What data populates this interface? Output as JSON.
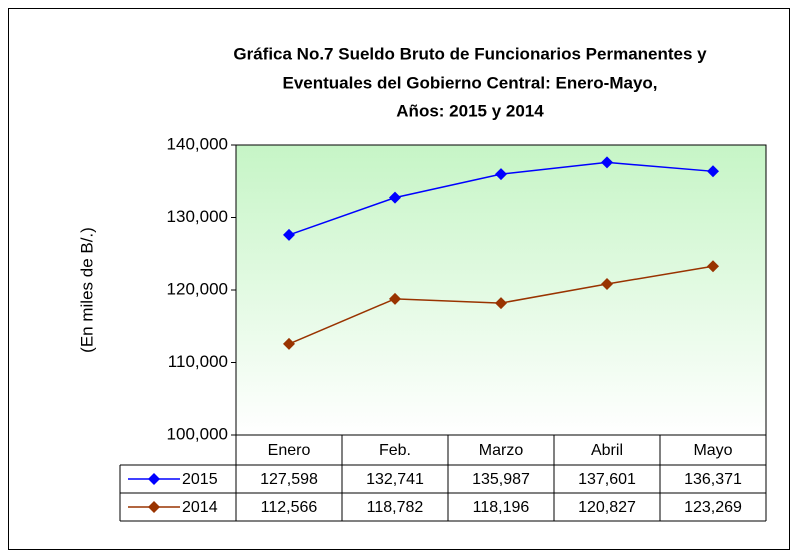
{
  "chart_data": {
    "type": "line",
    "title": [
      "Gráfica No.7 Sueldo Bruto de Funcionarios Permanentes y",
      "Eventuales del Gobierno Central: Enero-Mayo,",
      "Años: 2015 y 2014"
    ],
    "y_label": "(En miles de B/.)",
    "categories": [
      "Enero",
      "Feb.",
      "Marzo",
      "Abril",
      "Mayo"
    ],
    "series": [
      {
        "name": "2015",
        "color": "#0000ff",
        "values": [
          127598,
          132741,
          135987,
          137601,
          136371
        ],
        "value_labels": [
          "127,598",
          "132,741",
          "135,987",
          "137,601",
          "136,371"
        ]
      },
      {
        "name": "2014",
        "color": "#993300",
        "values": [
          112566,
          118782,
          118196,
          120827,
          123269
        ],
        "value_labels": [
          "112,566",
          "118,782",
          "118,196",
          "120,827",
          "123,269"
        ]
      }
    ],
    "ylim": [
      100000,
      140000
    ],
    "yticks": [
      {
        "value": 100000,
        "label": "100,000"
      },
      {
        "value": 110000,
        "label": "110,000"
      },
      {
        "value": 120000,
        "label": "120,000"
      },
      {
        "value": 130000,
        "label": "130,000"
      },
      {
        "value": 140000,
        "label": "140,000"
      }
    ],
    "grid": false
  }
}
